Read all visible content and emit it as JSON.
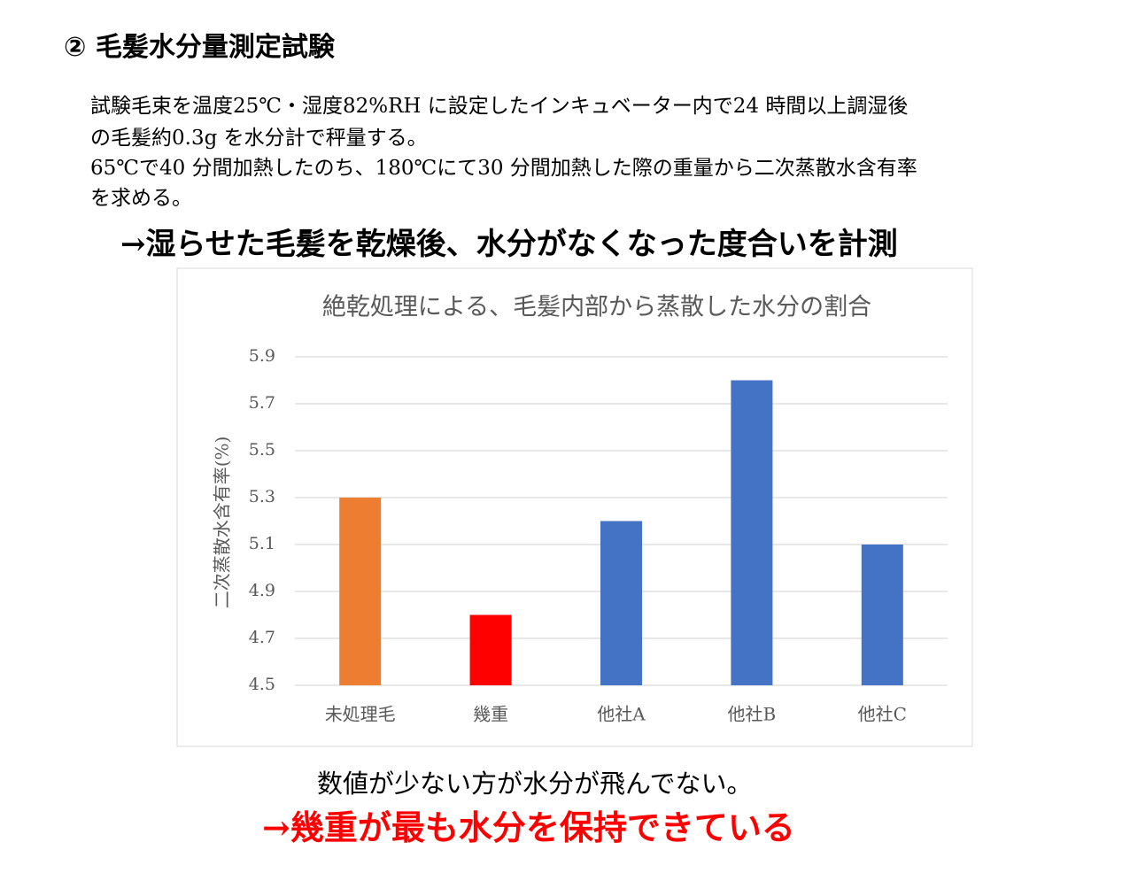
{
  "heading": "② 毛髪水分量測定試験",
  "body": {
    "lines": [
      "試験毛束を温度25℃・湿度82%RH に設定したインキュベーター内で24 時間以上調湿後",
      "の毛髪約0.3g を水分計で秤量する。",
      "65℃で40 分間加熱したのち、180℃にて30 分間加熱した際の重量から二次蒸散水含有率",
      "を求める。"
    ]
  },
  "purpose": "→湿らせた毛髪を乾燥後、水分がなくなった度合いを計測",
  "chart_data": {
    "type": "bar",
    "title": "絶乾処理による、毛髪内部から蒸散した水分の割合",
    "y_label": "二次蒸散水含有率(%)",
    "categories": [
      "未処理毛",
      "幾重",
      "他社A",
      "他社B",
      "他社C"
    ],
    "values": [
      5.3,
      4.8,
      5.2,
      5.8,
      5.1
    ],
    "colors": [
      "#ed7d31",
      "#ff0000",
      "#4472c4",
      "#4472c4",
      "#4472c4"
    ],
    "ylim": [
      4.5,
      5.9
    ],
    "yticks": [
      4.5,
      4.7,
      4.9,
      5.1,
      5.3,
      5.5,
      5.7,
      5.9
    ],
    "grid": true
  },
  "note": "数値が少ない方が水分が飛んでない。",
  "conclusion": "→幾重が最も水分を保持できている"
}
